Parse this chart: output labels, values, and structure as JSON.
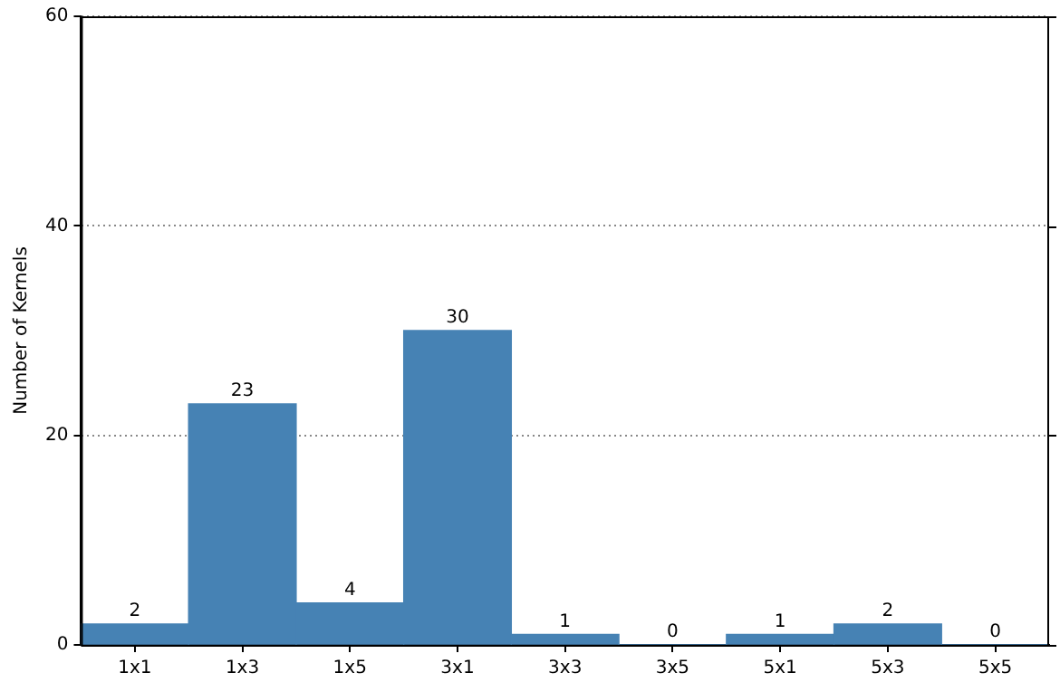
{
  "chart_data": {
    "type": "bar",
    "ylabel": "Number of Kernels",
    "categories": [
      "1x1",
      "1x3",
      "1x5",
      "3x1",
      "3x3",
      "3x5",
      "5x1",
      "5x3",
      "5x5"
    ],
    "values": [
      2,
      23,
      4,
      30,
      1,
      0,
      1,
      2,
      0
    ],
    "color": "#4682b4",
    "ylim": [
      0,
      60
    ],
    "yticks": [
      0,
      20,
      40,
      60
    ],
    "grid": "y",
    "data_labels": true
  }
}
